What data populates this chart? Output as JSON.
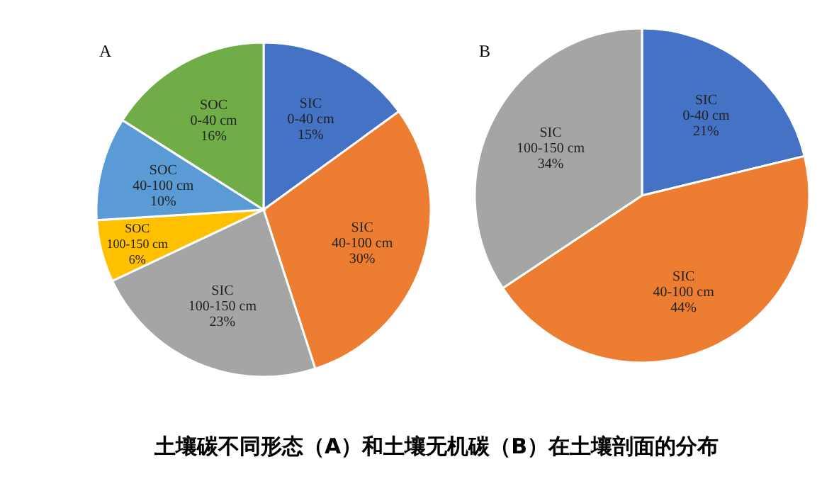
{
  "chart_data": [
    {
      "type": "pie",
      "title": "A",
      "categories": [
        "SIC 0-40 cm",
        "SIC 40-100 cm",
        "SIC 100-150 cm",
        "SOC 100-150 cm",
        "SOC 40-100 cm",
        "SOC 0-40 cm"
      ],
      "values": [
        15,
        30,
        23,
        6,
        10,
        16
      ],
      "value_labels": [
        "15%",
        "30%",
        "23%",
        "6%",
        "10%",
        "16%"
      ],
      "colors": [
        "#4472c4",
        "#ed7d31",
        "#a5a5a5",
        "#ffc000",
        "#5b9bd5",
        "#70ad47"
      ],
      "annotations": [
        "土壤碳不同形态（A）和土壤无机碳（B）在土壤剖面的分布"
      ]
    },
    {
      "type": "pie",
      "title": "B",
      "categories": [
        "SIC 0-40 cm",
        "SIC 40-100 cm",
        "SIC 100-150 cm"
      ],
      "values": [
        21,
        44,
        34
      ],
      "value_labels": [
        "21%",
        "44%",
        "34%"
      ],
      "colors": [
        "#4472c4",
        "#ed7d31",
        "#a5a5a5"
      ]
    }
  ]
}
